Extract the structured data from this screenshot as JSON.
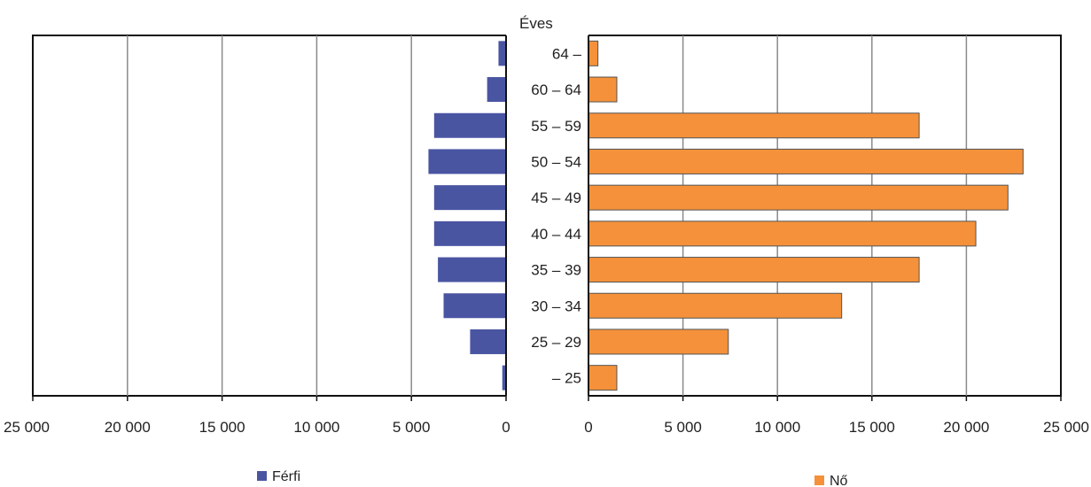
{
  "chart_data": {
    "type": "bar",
    "subtype": "population-pyramid",
    "category_axis_label": "Éves",
    "categories": [
      "64 –",
      "60 – 64",
      "55 – 59",
      "50 – 54",
      "45 – 49",
      "40 – 44",
      "35 – 39",
      "30 – 34",
      "25 – 29",
      "– 25"
    ],
    "xlim": [
      0,
      25000
    ],
    "tick_values": [
      0,
      5000,
      10000,
      15000,
      20000,
      25000
    ],
    "tick_labels": [
      "0",
      "5 000",
      "10 000",
      "15 000",
      "20 000",
      "25 000"
    ],
    "grid": true,
    "legend_position": "bottom",
    "series": [
      {
        "name": "Férfi",
        "side": "left",
        "color": "#4a55a2",
        "values": [
          400,
          1000,
          3800,
          4100,
          3800,
          3800,
          3600,
          3300,
          1900,
          200
        ]
      },
      {
        "name": "Nő",
        "side": "right",
        "color": "#f4913a",
        "values": [
          500,
          1500,
          17500,
          23000,
          22200,
          20500,
          17500,
          13400,
          7400,
          1500
        ]
      }
    ]
  }
}
